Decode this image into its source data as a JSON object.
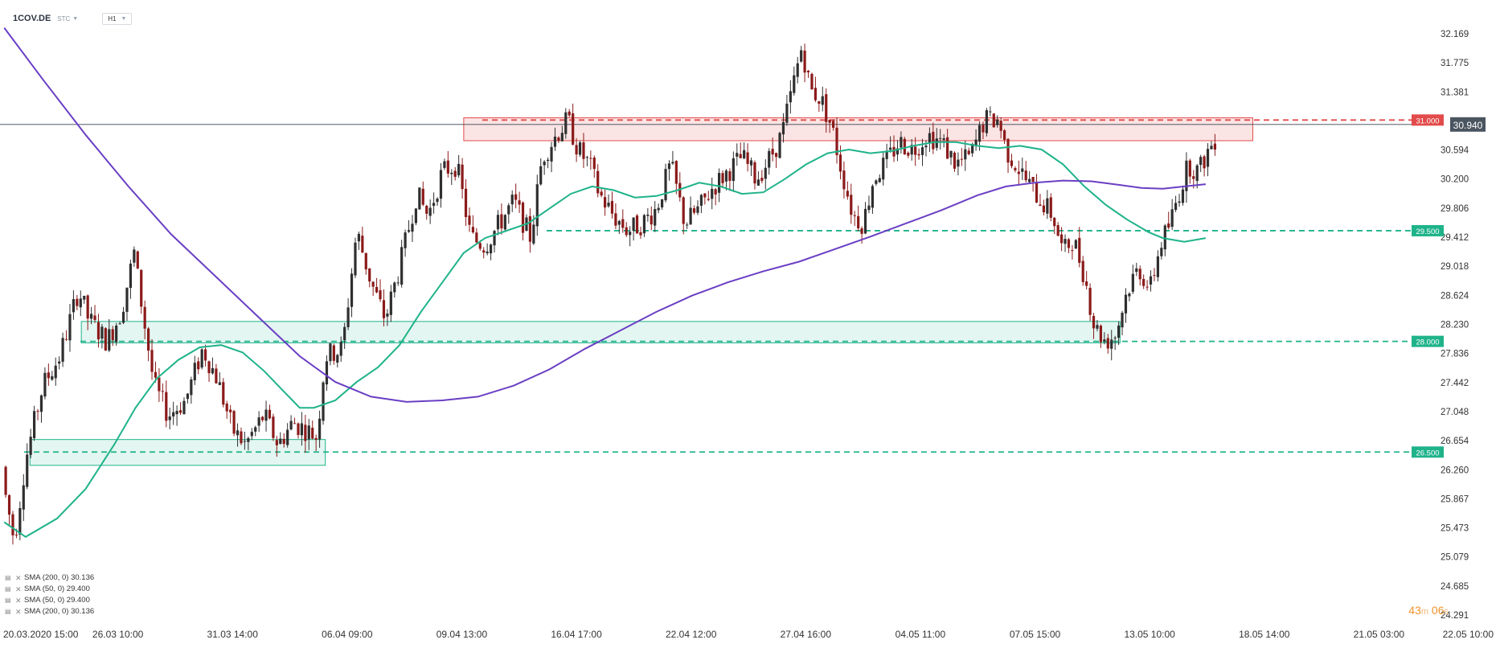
{
  "header": {
    "symbol": "1COV.DE",
    "source": "STC",
    "timeframe": "H1"
  },
  "countdown": {
    "minutes": "43",
    "m": "m",
    "seconds": "06",
    "s": "s"
  },
  "legend": [
    "SMA (200, 0) 30.136",
    "SMA (50, 0) 29.400",
    "SMA (50, 0) 29.400",
    "SMA (200, 0) 30.136"
  ],
  "colors": {
    "bull": "#2f2f2f",
    "bear": "#8b1a1a",
    "sma50": "#1fb38a",
    "sma200": "#6a3fc4",
    "resistance": "#e24b4b",
    "support": "#1fb38a",
    "grid_text": "#333333",
    "current": "#4a5560"
  },
  "chart_data": {
    "type": "candlestick",
    "title": "",
    "ylim": [
      24.291,
      32.3
    ],
    "y_ticks": [
      "32.169",
      "31.775",
      "31.381",
      "30.594",
      "30.200",
      "29.806",
      "29.412",
      "29.018",
      "28.624",
      "28.230",
      "27.836",
      "27.442",
      "27.048",
      "26.654",
      "26.260",
      "25.867",
      "25.473",
      "25.079",
      "24.685",
      "24.291"
    ],
    "x_ticks": [
      "20.03.2020  15:00",
      "26.03  10:00",
      "31.03  14:00",
      "06.04  09:00",
      "09.04  13:00",
      "16.04  17:00",
      "22.04  12:00",
      "27.04  16:00",
      "04.05  11:00",
      "07.05  15:00",
      "13.05  10:00",
      "18.05  14:00",
      "21.05  03:00",
      "22.05  10:00"
    ],
    "current_price": "30.940",
    "levels": [
      {
        "label": "31.000",
        "value": 31.0,
        "kind": "resistance"
      },
      {
        "label": "29.500",
        "value": 29.5,
        "kind": "support"
      },
      {
        "label": "28.000",
        "value": 28.0,
        "kind": "support"
      },
      {
        "label": "26.500",
        "value": 26.5,
        "kind": "support"
      }
    ],
    "zones": [
      {
        "kind": "resistance",
        "x_from": 0.325,
        "x_to": 0.878,
        "y_low": 30.72,
        "y_high": 31.03
      },
      {
        "kind": "support",
        "x_from": 0.057,
        "x_to": 0.785,
        "y_low": 27.98,
        "y_high": 28.27
      },
      {
        "kind": "support",
        "x_from": 0.021,
        "x_to": 0.228,
        "y_low": 26.32,
        "y_high": 26.67
      }
    ],
    "price_path": [
      [
        0.0,
        26.3
      ],
      [
        0.01,
        25.3
      ],
      [
        0.018,
        26.4
      ],
      [
        0.03,
        27.4
      ],
      [
        0.042,
        27.8
      ],
      [
        0.055,
        28.7
      ],
      [
        0.062,
        28.3
      ],
      [
        0.075,
        28.0
      ],
      [
        0.085,
        28.4
      ],
      [
        0.094,
        29.2
      ],
      [
        0.1,
        28.4
      ],
      [
        0.108,
        27.4
      ],
      [
        0.118,
        27.0
      ],
      [
        0.13,
        27.2
      ],
      [
        0.142,
        27.9
      ],
      [
        0.152,
        27.5
      ],
      [
        0.163,
        26.8
      ],
      [
        0.172,
        26.6
      ],
      [
        0.185,
        27.0
      ],
      [
        0.195,
        26.6
      ],
      [
        0.205,
        26.9
      ],
      [
        0.215,
        26.8
      ],
      [
        0.222,
        26.7
      ],
      [
        0.228,
        27.8
      ],
      [
        0.24,
        27.9
      ],
      [
        0.25,
        29.5
      ],
      [
        0.26,
        28.8
      ],
      [
        0.27,
        28.3
      ],
      [
        0.28,
        29.0
      ],
      [
        0.292,
        30.0
      ],
      [
        0.3,
        29.7
      ],
      [
        0.31,
        30.3
      ],
      [
        0.32,
        30.4
      ],
      [
        0.33,
        29.4
      ],
      [
        0.34,
        29.3
      ],
      [
        0.35,
        29.6
      ],
      [
        0.36,
        29.9
      ],
      [
        0.372,
        29.4
      ],
      [
        0.38,
        30.5
      ],
      [
        0.39,
        30.8
      ],
      [
        0.398,
        31.0
      ],
      [
        0.405,
        30.6
      ],
      [
        0.413,
        30.4
      ],
      [
        0.42,
        30.0
      ],
      [
        0.43,
        29.7
      ],
      [
        0.44,
        29.5
      ],
      [
        0.45,
        29.6
      ],
      [
        0.46,
        29.8
      ],
      [
        0.47,
        30.4
      ],
      [
        0.48,
        29.6
      ],
      [
        0.49,
        29.8
      ],
      [
        0.5,
        30.1
      ],
      [
        0.51,
        30.3
      ],
      [
        0.52,
        30.5
      ],
      [
        0.53,
        30.2
      ],
      [
        0.54,
        30.5
      ],
      [
        0.548,
        30.8
      ],
      [
        0.555,
        31.4
      ],
      [
        0.562,
        32.0
      ],
      [
        0.568,
        31.4
      ],
      [
        0.575,
        31.3
      ],
      [
        0.583,
        30.9
      ],
      [
        0.59,
        30.3
      ],
      [
        0.598,
        29.7
      ],
      [
        0.605,
        29.6
      ],
      [
        0.612,
        30.2
      ],
      [
        0.62,
        30.4
      ],
      [
        0.63,
        30.7
      ],
      [
        0.64,
        30.6
      ],
      [
        0.65,
        30.8
      ],
      [
        0.66,
        30.7
      ],
      [
        0.67,
        30.4
      ],
      [
        0.68,
        30.5
      ],
      [
        0.69,
        31.0
      ],
      [
        0.7,
        31.0
      ],
      [
        0.705,
        30.6
      ],
      [
        0.712,
        30.4
      ],
      [
        0.722,
        30.1
      ],
      [
        0.73,
        29.9
      ],
      [
        0.738,
        29.7
      ],
      [
        0.745,
        29.2
      ],
      [
        0.752,
        29.4
      ],
      [
        0.76,
        28.9
      ],
      [
        0.767,
        28.2
      ],
      [
        0.775,
        28.0
      ],
      [
        0.782,
        28.1
      ],
      [
        0.79,
        28.7
      ],
      [
        0.798,
        29.0
      ],
      [
        0.806,
        28.7
      ],
      [
        0.813,
        29.3
      ],
      [
        0.82,
        29.6
      ],
      [
        0.826,
        30.0
      ],
      [
        0.833,
        30.4
      ],
      [
        0.84,
        30.3
      ],
      [
        0.847,
        30.6
      ],
      [
        0.853,
        30.8
      ]
    ],
    "series": [
      {
        "name": "SMA (50, 0)",
        "points": [
          [
            0.003,
            25.55
          ],
          [
            0.018,
            25.35
          ],
          [
            0.04,
            25.6
          ],
          [
            0.06,
            26.0
          ],
          [
            0.08,
            26.6
          ],
          [
            0.095,
            27.1
          ],
          [
            0.11,
            27.5
          ],
          [
            0.125,
            27.75
          ],
          [
            0.14,
            27.92
          ],
          [
            0.155,
            27.95
          ],
          [
            0.17,
            27.85
          ],
          [
            0.185,
            27.6
          ],
          [
            0.2,
            27.3
          ],
          [
            0.21,
            27.1
          ],
          [
            0.22,
            27.1
          ],
          [
            0.235,
            27.2
          ],
          [
            0.25,
            27.45
          ],
          [
            0.265,
            27.65
          ],
          [
            0.28,
            27.95
          ],
          [
            0.295,
            28.4
          ],
          [
            0.31,
            28.8
          ],
          [
            0.325,
            29.2
          ],
          [
            0.34,
            29.4
          ],
          [
            0.355,
            29.5
          ],
          [
            0.37,
            29.6
          ],
          [
            0.385,
            29.8
          ],
          [
            0.4,
            30.0
          ],
          [
            0.415,
            30.1
          ],
          [
            0.43,
            30.05
          ],
          [
            0.445,
            29.95
          ],
          [
            0.46,
            29.97
          ],
          [
            0.475,
            30.05
          ],
          [
            0.49,
            30.15
          ],
          [
            0.505,
            30.1
          ],
          [
            0.52,
            30.0
          ],
          [
            0.535,
            30.02
          ],
          [
            0.55,
            30.2
          ],
          [
            0.565,
            30.4
          ],
          [
            0.58,
            30.55
          ],
          [
            0.595,
            30.6
          ],
          [
            0.61,
            30.55
          ],
          [
            0.625,
            30.58
          ],
          [
            0.64,
            30.65
          ],
          [
            0.655,
            30.7
          ],
          [
            0.67,
            30.7
          ],
          [
            0.685,
            30.65
          ],
          [
            0.7,
            30.62
          ],
          [
            0.715,
            30.65
          ],
          [
            0.73,
            30.6
          ],
          [
            0.745,
            30.4
          ],
          [
            0.76,
            30.1
          ],
          [
            0.775,
            29.85
          ],
          [
            0.79,
            29.65
          ],
          [
            0.805,
            29.48
          ],
          [
            0.815,
            29.4
          ],
          [
            0.83,
            29.35
          ],
          [
            0.845,
            29.4
          ]
        ]
      },
      {
        "name": "SMA (200, 0)",
        "points": [
          [
            0.003,
            32.25
          ],
          [
            0.03,
            31.55
          ],
          [
            0.06,
            30.8
          ],
          [
            0.09,
            30.1
          ],
          [
            0.12,
            29.45
          ],
          [
            0.15,
            28.9
          ],
          [
            0.18,
            28.35
          ],
          [
            0.21,
            27.8
          ],
          [
            0.235,
            27.45
          ],
          [
            0.26,
            27.25
          ],
          [
            0.285,
            27.18
          ],
          [
            0.31,
            27.2
          ],
          [
            0.335,
            27.25
          ],
          [
            0.36,
            27.4
          ],
          [
            0.385,
            27.62
          ],
          [
            0.41,
            27.9
          ],
          [
            0.435,
            28.15
          ],
          [
            0.46,
            28.4
          ],
          [
            0.485,
            28.62
          ],
          [
            0.51,
            28.8
          ],
          [
            0.535,
            28.95
          ],
          [
            0.56,
            29.08
          ],
          [
            0.585,
            29.25
          ],
          [
            0.61,
            29.42
          ],
          [
            0.635,
            29.6
          ],
          [
            0.66,
            29.78
          ],
          [
            0.685,
            29.98
          ],
          [
            0.705,
            30.1
          ],
          [
            0.725,
            30.15
          ],
          [
            0.745,
            30.18
          ],
          [
            0.765,
            30.17
          ],
          [
            0.785,
            30.12
          ],
          [
            0.8,
            30.08
          ],
          [
            0.815,
            30.07
          ],
          [
            0.83,
            30.1
          ],
          [
            0.845,
            30.13
          ]
        ]
      }
    ]
  }
}
